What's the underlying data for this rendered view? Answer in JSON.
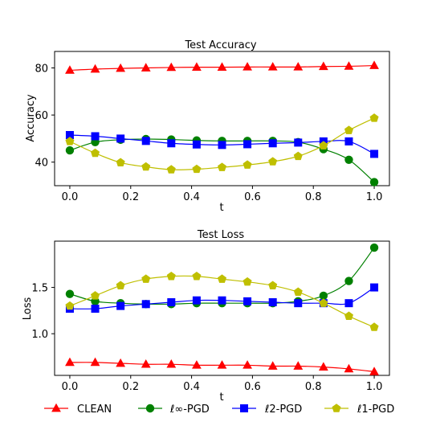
{
  "chart_data": [
    {
      "type": "line",
      "title": "Test Accuracy",
      "xlabel": "t",
      "ylabel": "Accuracy",
      "xlim": [
        -0.05,
        1.05
      ],
      "ylim": [
        30,
        87
      ],
      "xticks": [
        0.0,
        0.2,
        0.4,
        0.6,
        0.8,
        1.0
      ],
      "xtick_labels": [
        "0.0",
        "0.2",
        "0.4",
        "0.6",
        "0.8",
        "1.0"
      ],
      "yticks": [
        40,
        60,
        80
      ],
      "ytick_labels": [
        "40",
        "60",
        "80"
      ],
      "x": [
        0.0,
        0.0833,
        0.1667,
        0.25,
        0.3333,
        0.4167,
        0.5,
        0.5833,
        0.6667,
        0.75,
        0.8333,
        0.9167,
        1.0
      ],
      "series": [
        {
          "name": "CLEAN",
          "color": "#ff0000",
          "marker": "triangle",
          "values": [
            79.0,
            79.5,
            79.8,
            80.0,
            80.2,
            80.3,
            80.3,
            80.4,
            80.4,
            80.4,
            80.6,
            80.7,
            81.0
          ]
        },
        {
          "name": "ℓ∞-PGD",
          "color": "#008000",
          "marker": "circle",
          "values": [
            45.0,
            48.5,
            49.5,
            49.8,
            49.6,
            49.2,
            49.0,
            49.0,
            49.0,
            48.5,
            45.5,
            41.0,
            31.5
          ]
        },
        {
          "name": "ℓ2-PGD",
          "color": "#0000ff",
          "marker": "square",
          "values": [
            51.5,
            51.0,
            50.0,
            49.0,
            48.0,
            47.5,
            47.3,
            47.6,
            48.0,
            48.3,
            48.8,
            48.8,
            43.5
          ]
        },
        {
          "name": "ℓ1-PGD",
          "color": "#bfbf00",
          "marker": "pentagon",
          "values": [
            48.8,
            43.8,
            39.8,
            38.0,
            36.8,
            37.0,
            37.8,
            38.8,
            40.2,
            42.5,
            47.0,
            53.5,
            58.7
          ]
        }
      ],
      "grid": false
    },
    {
      "type": "line",
      "title": "Test Loss",
      "xlabel": "t",
      "ylabel": "Loss",
      "xlim": [
        -0.05,
        1.05
      ],
      "ylim": [
        0.55,
        2.0
      ],
      "xticks": [
        0.0,
        0.2,
        0.4,
        0.6,
        0.8,
        1.0
      ],
      "xtick_labels": [
        "0.0",
        "0.2",
        "0.4",
        "0.6",
        "0.8",
        "1.0"
      ],
      "yticks": [
        1.0,
        1.5
      ],
      "ytick_labels": [
        "1.0",
        "1.5"
      ],
      "x": [
        0.0,
        0.0833,
        0.1667,
        0.25,
        0.3333,
        0.4167,
        0.5,
        0.5833,
        0.6667,
        0.75,
        0.8333,
        0.9167,
        1.0
      ],
      "series": [
        {
          "name": "CLEAN",
          "color": "#ff0000",
          "marker": "triangle",
          "values": [
            0.69,
            0.69,
            0.68,
            0.67,
            0.67,
            0.66,
            0.66,
            0.66,
            0.65,
            0.65,
            0.64,
            0.62,
            0.59
          ]
        },
        {
          "name": "ℓ∞-PGD",
          "color": "#008000",
          "marker": "circle",
          "values": [
            1.43,
            1.35,
            1.33,
            1.32,
            1.32,
            1.33,
            1.33,
            1.33,
            1.33,
            1.35,
            1.41,
            1.57,
            1.93
          ]
        },
        {
          "name": "ℓ2-PGD",
          "color": "#0000ff",
          "marker": "square",
          "values": [
            1.27,
            1.27,
            1.3,
            1.32,
            1.34,
            1.36,
            1.36,
            1.35,
            1.34,
            1.33,
            1.33,
            1.33,
            1.5
          ]
        },
        {
          "name": "ℓ1-PGD",
          "color": "#bfbf00",
          "marker": "pentagon",
          "values": [
            1.3,
            1.41,
            1.52,
            1.59,
            1.62,
            1.62,
            1.59,
            1.56,
            1.52,
            1.45,
            1.33,
            1.19,
            1.07
          ]
        }
      ],
      "grid": false
    }
  ],
  "legend": {
    "placement": "bottom",
    "entries": [
      {
        "label": "CLEAN",
        "color": "#ff0000",
        "marker": "triangle"
      },
      {
        "label": "ℓ∞-PGD",
        "color": "#008000",
        "marker": "circle"
      },
      {
        "label": "ℓ2-PGD",
        "color": "#0000ff",
        "marker": "square"
      },
      {
        "label": "ℓ1-PGD",
        "color": "#bfbf00",
        "marker": "pentagon"
      }
    ]
  }
}
